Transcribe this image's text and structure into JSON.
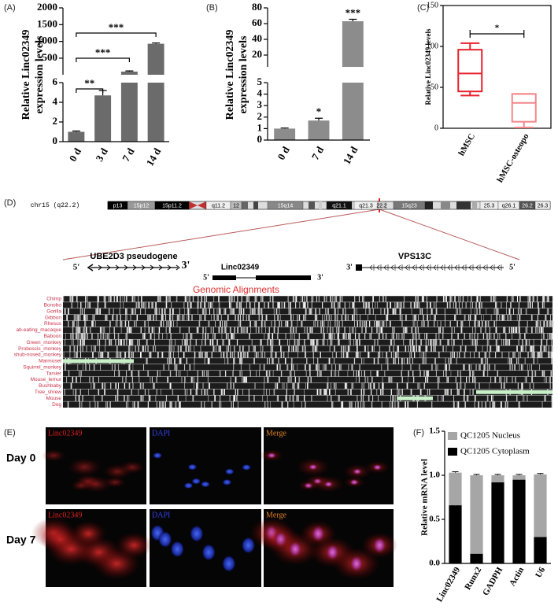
{
  "chart_data": [
    {
      "type": "bar",
      "panel_label": "(A)",
      "ylabel": [
        "Relative Linc02349",
        "expression levels"
      ],
      "categories": [
        "0 d",
        "3 d",
        "7 d",
        "14 d"
      ],
      "values": [
        1,
        4.7,
        100,
        930
      ],
      "errors": [
        0.08,
        0.5,
        20,
        25
      ],
      "color": "#6b6b6b",
      "axis_segments": [
        {
          "ylim": [
            0,
            6
          ],
          "yticks": [
            0,
            2,
            4,
            6
          ]
        },
        {
          "ylim": [
            6,
            2000
          ],
          "yticks": [
            500,
            1000,
            1500,
            2000
          ]
        }
      ],
      "significance": [
        "**",
        "***",
        "***"
      ]
    },
    {
      "type": "bar",
      "panel_label": "(B)",
      "ylabel": [
        "Relative Linc02349",
        "expression levels"
      ],
      "categories": [
        "0 d",
        "7 d",
        "14 d"
      ],
      "values": [
        1,
        1.7,
        63
      ],
      "errors": [
        0.05,
        0.2,
        2.5
      ],
      "color": "#8c8c8c",
      "axis_segments": [
        {
          "ylim": [
            0,
            5
          ],
          "yticks": [
            0,
            1,
            2,
            3,
            4,
            5
          ]
        },
        {
          "ylim": [
            5,
            80
          ],
          "yticks": [
            20,
            40,
            60,
            80
          ]
        }
      ],
      "significance": [
        "*",
        "***"
      ]
    },
    {
      "type": "box",
      "panel_label": "(C)",
      "ylabel": "Relative Linc02349 levels",
      "categories": [
        "hMSC",
        "hMSC-osteopo"
      ],
      "boxes": [
        {
          "min": 40,
          "q1": 45,
          "median": 67,
          "q3": 96,
          "max": 104,
          "color": "#e8212b"
        },
        {
          "min": 1,
          "q1": 8,
          "median": 31,
          "q3": 42,
          "max": 42,
          "color": "#f4878b"
        }
      ],
      "ylim": [
        0,
        150
      ],
      "yticks": [
        0,
        50,
        100,
        150
      ],
      "significance": [
        "*"
      ]
    },
    {
      "type": "stacked_bar",
      "panel_label": "(F)",
      "ylabel": "Relative mRNA level",
      "categories": [
        "Linc02349",
        "Runx2",
        "GADPH",
        "Actin",
        "U6"
      ],
      "series": [
        {
          "name": "QC1205 Cytoplasm",
          "color": "#000000",
          "values": [
            0.66,
            0.11,
            0.92,
            0.95,
            0.3
          ],
          "errors": [
            0.01,
            0.01,
            0.01,
            0.01,
            0.01
          ]
        },
        {
          "name": "QC1205 Nucleus",
          "color": "#a6a6a6",
          "values": [
            0.37,
            0.89,
            0.08,
            0.05,
            0.71
          ],
          "errors": [
            0.01,
            0.01,
            0.01,
            0.01,
            0.01
          ]
        }
      ],
      "ylim": [
        0,
        1.5
      ],
      "yticks": [
        {
          "value": 0,
          "label": "0.0"
        },
        0.5,
        {
          "value": 1,
          "label": "1.0"
        },
        1.5
      ],
      "legend": "top"
    }
  ],
  "genome_panel": {
    "panel_label": "(D)",
    "chromosome": "chr15 (q22.2)",
    "bands": [
      "p13",
      "15p12",
      "15p11.2",
      "q11.2",
      "12",
      "15q14",
      "q21.1",
      "q21.3",
      "22.2",
      "15q23",
      "25.3",
      "q26.1",
      "26.2",
      "26.3"
    ],
    "genes": [
      {
        "name": "UBE2D3 pseudogene",
        "ends": [
          "5'",
          "3'"
        ]
      },
      {
        "name": "Linc02349",
        "ends": [
          "5'",
          "3'"
        ]
      },
      {
        "name": "VPS13C",
        "ends": [
          "3'",
          "5'"
        ]
      }
    ],
    "alignment_title": "Genomic Alignments",
    "species": [
      "Chimp",
      "Bonobo",
      "Gorilla",
      "Gibbon",
      "Rhesus",
      "ab-eating_macaque",
      "Baboon",
      "Green_monkey",
      "Proboscis_monkey",
      "shub-nosed_monkey",
      "Marmoset",
      "Squirrel_monkey",
      "Tarsier",
      "Mouse_lemur",
      "Bushbaby",
      "Tree_shrew",
      "Mouse",
      "Dog"
    ]
  },
  "imaging_panel": {
    "panel_label": "(E)",
    "channels": [
      "Linc02349",
      "DAPI",
      "Merge"
    ],
    "days": [
      "Day 0",
      "Day 7"
    ]
  }
}
